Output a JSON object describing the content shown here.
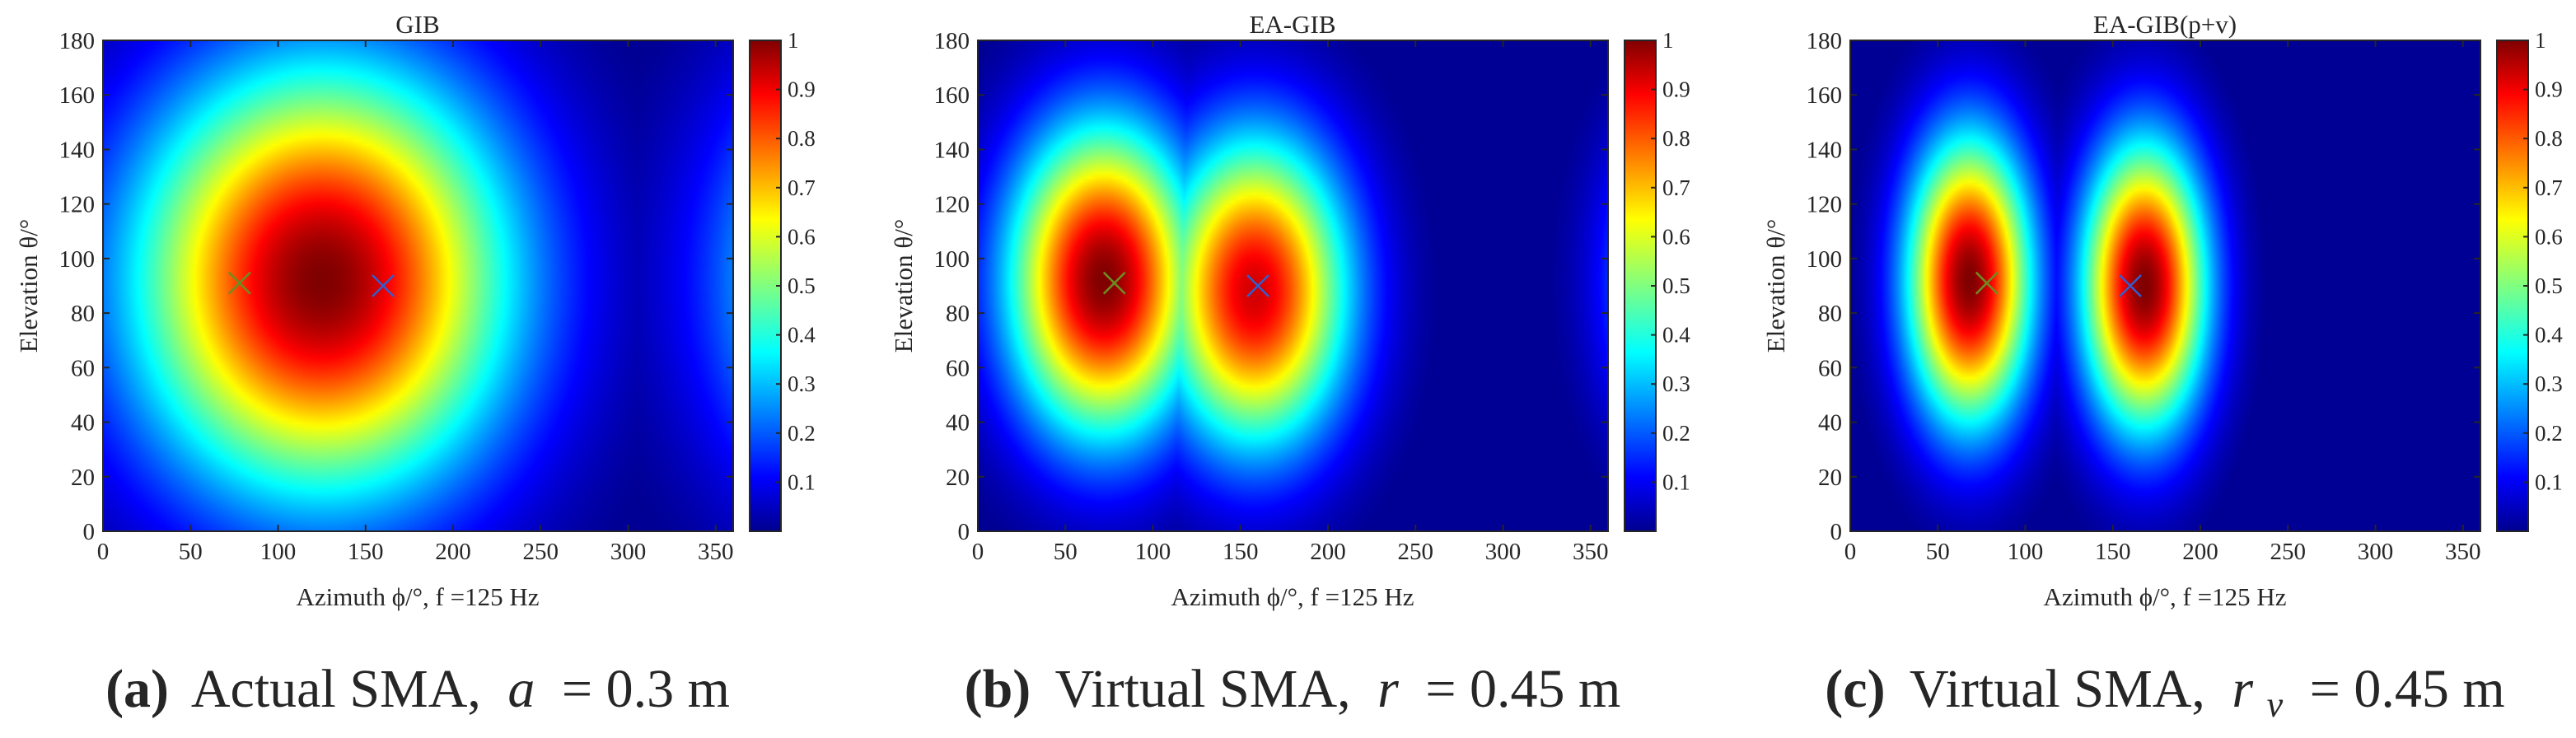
{
  "colors": {
    "colormap": "jet",
    "marker_source_1": "#6b8e23",
    "marker_source_2": "#2f5fd0",
    "axes": "#262626",
    "background": "#ffffff"
  },
  "chart_data": [
    {
      "type": "heatmap",
      "title": "GIB",
      "xlabel": "Azimuth ϕ/°, f =125 Hz",
      "ylabel": "Elevation θ/°",
      "xlim": [
        0,
        360
      ],
      "ylim": [
        0,
        180
      ],
      "x_ticks": [
        0,
        50,
        100,
        150,
        200,
        250,
        300,
        350
      ],
      "y_ticks": [
        0,
        20,
        40,
        60,
        80,
        100,
        120,
        140,
        160,
        180
      ],
      "colorbar": {
        "range": [
          0,
          1
        ],
        "ticks": [
          0.1,
          0.2,
          0.3,
          0.4,
          0.5,
          0.6,
          0.7,
          0.8,
          0.9,
          1
        ],
        "tick_labels": [
          "0.1",
          "0.2",
          "0.3",
          "0.4",
          "0.5",
          "0.6",
          "0.7",
          "0.8",
          "0.9",
          "1"
        ]
      },
      "peaks": [
        {
          "azimuth": 125,
          "elevation": 92,
          "level": 1.0,
          "spread_azimuth": 75,
          "spread_elevation": 55
        }
      ],
      "markers": [
        {
          "azimuth": 78,
          "elevation": 91,
          "symbol": "x",
          "color": "#6b8e23"
        },
        {
          "azimuth": 160,
          "elevation": 90,
          "symbol": "x",
          "color": "#2f5fd0"
        }
      ],
      "caption": {
        "letter": "(a)",
        "text": "Actual SMA,",
        "var": "a",
        "value": "= 0.3 m"
      }
    },
    {
      "type": "heatmap",
      "title": "EA-GIB",
      "xlabel": "Azimuth ϕ/°, f =125 Hz",
      "ylabel": "Elevation θ/°",
      "xlim": [
        0,
        360
      ],
      "ylim": [
        0,
        180
      ],
      "x_ticks": [
        0,
        50,
        100,
        150,
        200,
        250,
        300,
        350
      ],
      "y_ticks": [
        0,
        20,
        40,
        60,
        80,
        100,
        120,
        140,
        160,
        180
      ],
      "colorbar": {
        "range": [
          0,
          1
        ],
        "ticks": [
          0.1,
          0.2,
          0.3,
          0.4,
          0.5,
          0.6,
          0.7,
          0.8,
          0.9,
          1
        ],
        "tick_labels": [
          "0.1",
          "0.2",
          "0.3",
          "0.4",
          "0.5",
          "0.6",
          "0.7",
          "0.8",
          "0.9",
          "1"
        ]
      },
      "peaks": [
        {
          "azimuth": 72,
          "elevation": 92,
          "level": 1.0,
          "spread_azimuth": 38,
          "spread_elevation": 40
        },
        {
          "azimuth": 158,
          "elevation": 88,
          "level": 0.92,
          "spread_azimuth": 38,
          "spread_elevation": 40
        }
      ],
      "markers": [
        {
          "azimuth": 78,
          "elevation": 91,
          "symbol": "x",
          "color": "#6b8e23"
        },
        {
          "azimuth": 160,
          "elevation": 90,
          "symbol": "x",
          "color": "#2f5fd0"
        }
      ],
      "caption": {
        "letter": "(b)",
        "text": "Virtual SMA,",
        "var": "r",
        "value": "= 0.45 m"
      }
    },
    {
      "type": "heatmap",
      "title": "EA-GIB(p+v)",
      "xlabel": "Azimuth ϕ/°, f =125 Hz",
      "ylabel": "Elevation θ/°",
      "xlim": [
        0,
        360
      ],
      "ylim": [
        0,
        180
      ],
      "x_ticks": [
        0,
        50,
        100,
        150,
        200,
        250,
        300,
        350
      ],
      "y_ticks": [
        0,
        20,
        40,
        60,
        80,
        100,
        120,
        140,
        160,
        180
      ],
      "colorbar": {
        "range": [
          0,
          1
        ],
        "ticks": [
          0.1,
          0.2,
          0.3,
          0.4,
          0.5,
          0.6,
          0.7,
          0.8,
          0.9,
          1
        ],
        "tick_labels": [
          "0.1",
          "0.2",
          "0.3",
          "0.4",
          "0.5",
          "0.6",
          "0.7",
          "0.8",
          "0.9",
          "1"
        ]
      },
      "peaks": [
        {
          "azimuth": 68,
          "elevation": 92,
          "level": 1.0,
          "spread_azimuth": 25,
          "spread_elevation": 37
        },
        {
          "azimuth": 168,
          "elevation": 90,
          "level": 1.0,
          "spread_azimuth": 25,
          "spread_elevation": 37
        }
      ],
      "markers": [
        {
          "azimuth": 78,
          "elevation": 91,
          "symbol": "x",
          "color": "#6b8e23"
        },
        {
          "azimuth": 160,
          "elevation": 90,
          "symbol": "x",
          "color": "#2f5fd0"
        }
      ],
      "caption": {
        "letter": "(c)",
        "text": "Virtual SMA,",
        "var": "r",
        "var_sub": "v",
        "value": "= 0.45 m"
      }
    }
  ]
}
